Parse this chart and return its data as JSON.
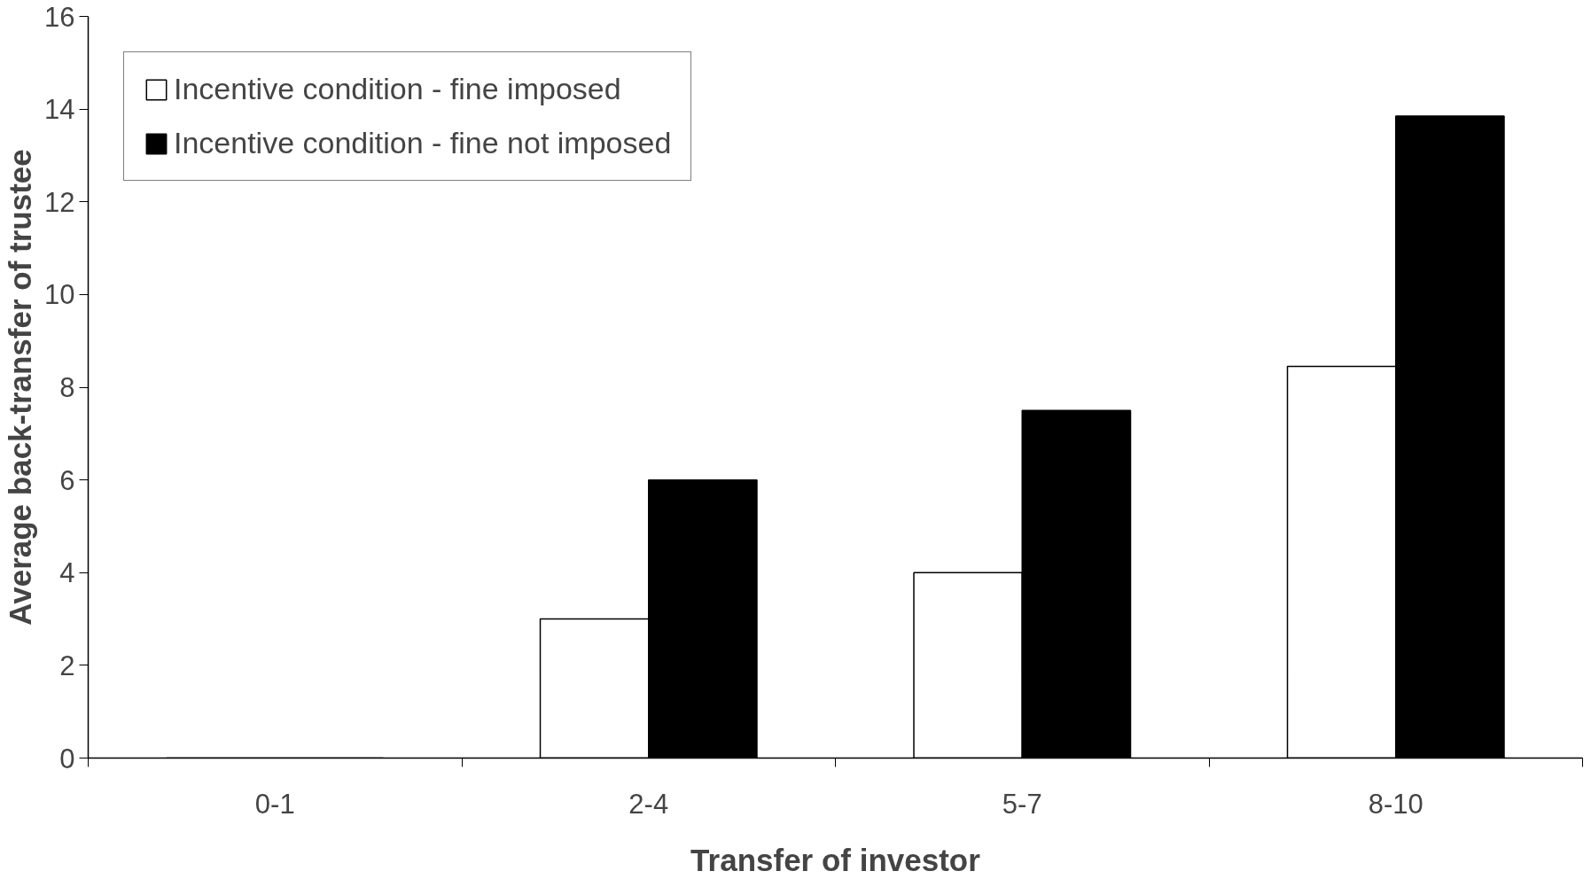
{
  "chart_data": {
    "type": "bar",
    "xlabel": "Transfer of investor",
    "ylabel": "Average back-transfer of trustee",
    "categories": [
      "0-1",
      "2-4",
      "5-7",
      "8-10"
    ],
    "series": [
      {
        "name": "Incentive condition - fine imposed",
        "color": "#ffffff",
        "values": [
          0,
          3,
          4,
          8.45
        ]
      },
      {
        "name": "Incentive condition - fine not imposed",
        "color": "#000000",
        "values": [
          0,
          6,
          7.5,
          13.85
        ]
      }
    ],
    "ylim": [
      0,
      16
    ],
    "yticks": [
      0,
      2,
      4,
      6,
      8,
      10,
      12,
      14,
      16
    ],
    "grid": false,
    "legend": "top left"
  }
}
